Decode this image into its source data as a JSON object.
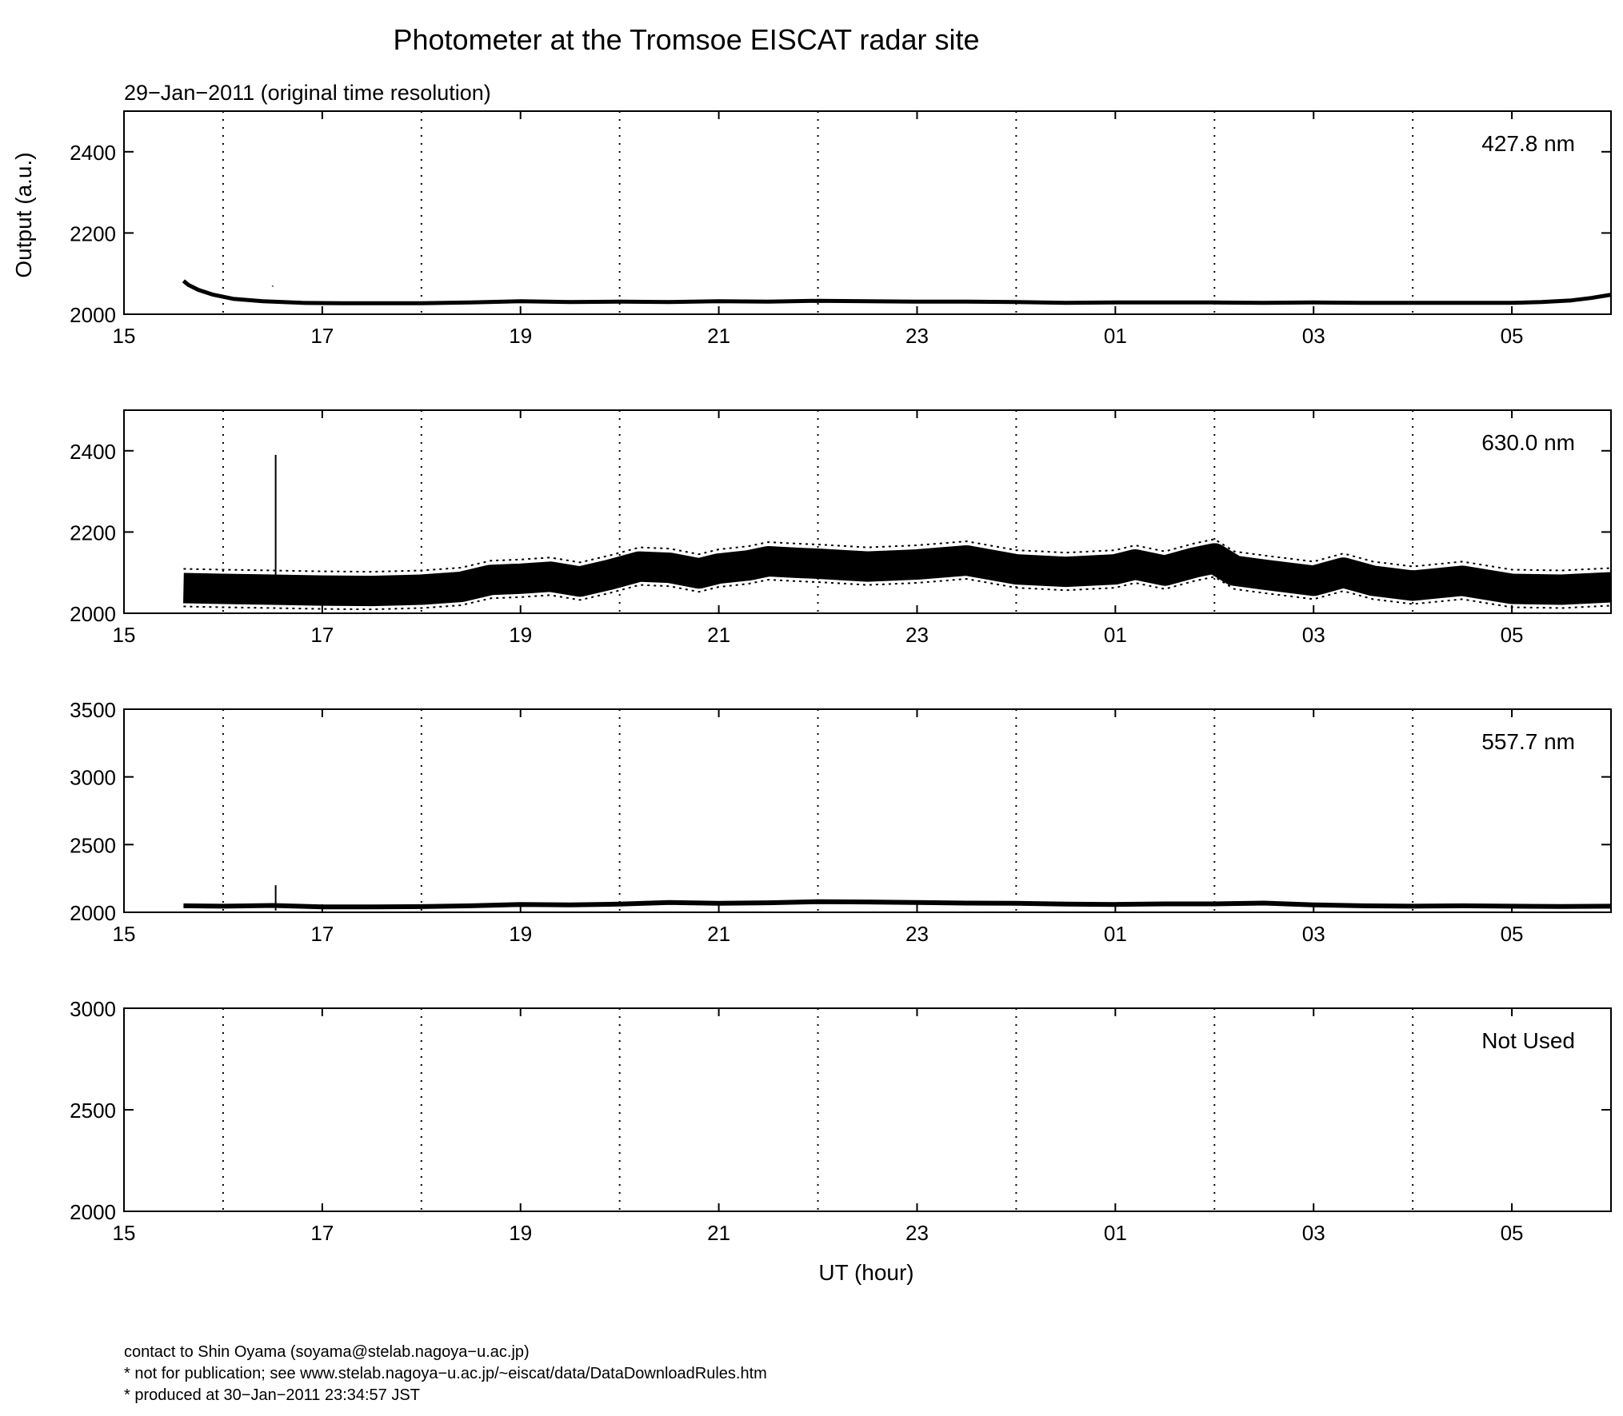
{
  "figure": {
    "title": "Photometer at the Tromsoe EISCAT radar site",
    "subtitle": "29−Jan−2011 (original time resolution)",
    "ylabel": "Output (a.u.)",
    "xlabel": "UT (hour)",
    "footer": [
      "contact to Shin Oyama (soyama@stelab.nagoya−u.ac.jp)",
      "* not for publication; see www.stelab.nagoya−u.ac.jp/~eiscat/data/DataDownloadRules.htm",
      "* produced at 30−Jan−2011 23:34:57 JST"
    ]
  },
  "chart_data": [
    {
      "type": "line",
      "label": "427.8 nm",
      "x_unit": "hours since 15 UT",
      "xlim": [
        0,
        15
      ],
      "x_ticks": [
        0,
        2,
        4,
        6,
        8,
        10,
        12,
        14
      ],
      "x_tick_labels": [
        "15",
        "17",
        "19",
        "21",
        "23",
        "01",
        "03",
        "05"
      ],
      "x_grid": [
        1,
        3,
        5,
        7,
        9,
        11,
        13
      ],
      "ylim": [
        2000,
        2500
      ],
      "y_ticks": [
        2000,
        2200,
        2400
      ],
      "grid": "vertical dotted",
      "band": 5,
      "spikes": [
        {
          "x": 1.5,
          "y": 2068
        }
      ],
      "series": [
        {
          "x": [
            0.6,
            0.65,
            0.75,
            0.9,
            1.1,
            1.4,
            1.8,
            2.2,
            2.6,
            3.0,
            3.5,
            4.0,
            4.5,
            5.0,
            5.5,
            6.0,
            6.5,
            7.0,
            7.5,
            8.0,
            8.5,
            9.0,
            9.5,
            10.0,
            10.5,
            11.0,
            11.5,
            12.0,
            12.5,
            13.0,
            13.5,
            14.0,
            14.3,
            14.6,
            14.8,
            15.0
          ],
          "y": [
            2082,
            2072,
            2060,
            2048,
            2038,
            2032,
            2028,
            2027,
            2027,
            2027,
            2029,
            2032,
            2030,
            2031,
            2030,
            2032,
            2031,
            2033,
            2032,
            2031,
            2031,
            2030,
            2028,
            2029,
            2029,
            2029,
            2028,
            2029,
            2028,
            2028,
            2028,
            2028,
            2030,
            2034,
            2040,
            2048
          ]
        }
      ]
    },
    {
      "type": "line",
      "label": "630.0 nm",
      "x_unit": "hours since 15 UT",
      "xlim": [
        0,
        15
      ],
      "x_ticks": [
        0,
        2,
        4,
        6,
        8,
        10,
        12,
        14
      ],
      "x_tick_labels": [
        "15",
        "17",
        "19",
        "21",
        "23",
        "01",
        "03",
        "05"
      ],
      "x_grid": [
        1,
        3,
        5,
        7,
        9,
        11,
        13
      ],
      "ylim": [
        2000,
        2500
      ],
      "y_ticks": [
        2000,
        2200,
        2400
      ],
      "grid": "vertical dotted",
      "band": 38,
      "spikes": [
        {
          "x": 1.53,
          "y": 2390
        }
      ],
      "series": [
        {
          "x": [
            0.6,
            1.0,
            1.5,
            2.0,
            2.5,
            3.0,
            3.4,
            3.7,
            4.0,
            4.3,
            4.6,
            4.9,
            5.2,
            5.5,
            5.8,
            6.0,
            6.3,
            6.5,
            6.8,
            7.0,
            7.5,
            8.0,
            8.5,
            9.0,
            9.5,
            10.0,
            10.2,
            10.5,
            10.8,
            11.0,
            11.2,
            11.5,
            12.0,
            12.3,
            12.6,
            13.0,
            13.5,
            14.0,
            14.5,
            15.0
          ],
          "y": [
            2062,
            2060,
            2058,
            2056,
            2055,
            2058,
            2065,
            2082,
            2085,
            2090,
            2078,
            2095,
            2115,
            2112,
            2098,
            2110,
            2118,
            2128,
            2124,
            2122,
            2115,
            2120,
            2130,
            2108,
            2102,
            2108,
            2120,
            2105,
            2125,
            2135,
            2105,
            2095,
            2080,
            2100,
            2080,
            2068,
            2080,
            2060,
            2058,
            2064
          ]
        }
      ]
    },
    {
      "type": "line",
      "label": "557.7 nm",
      "x_unit": "hours since 15 UT",
      "xlim": [
        0,
        15
      ],
      "x_ticks": [
        0,
        2,
        4,
        6,
        8,
        10,
        12,
        14
      ],
      "x_tick_labels": [
        "15",
        "17",
        "19",
        "21",
        "23",
        "01",
        "03",
        "05"
      ],
      "x_grid": [
        1,
        3,
        5,
        7,
        9,
        11,
        13
      ],
      "ylim": [
        2000,
        3500
      ],
      "y_ticks": [
        2000,
        2500,
        3000,
        3500
      ],
      "grid": "vertical dotted",
      "band": 6,
      "spikes": [
        {
          "x": 1.53,
          "y": 2200
        }
      ],
      "series": [
        {
          "x": [
            0.6,
            1.0,
            1.5,
            2.0,
            2.5,
            3.0,
            3.5,
            4.0,
            4.5,
            5.0,
            5.5,
            6.0,
            6.5,
            7.0,
            7.5,
            8.0,
            8.5,
            9.0,
            9.5,
            10.0,
            10.5,
            11.0,
            11.5,
            12.0,
            12.5,
            13.0,
            13.5,
            14.0,
            14.5,
            15.0
          ],
          "y": [
            2048,
            2045,
            2050,
            2040,
            2040,
            2042,
            2048,
            2058,
            2055,
            2060,
            2072,
            2066,
            2070,
            2078,
            2076,
            2072,
            2068,
            2066,
            2060,
            2058,
            2062,
            2062,
            2068,
            2055,
            2048,
            2045,
            2048,
            2045,
            2043,
            2045
          ]
        }
      ]
    },
    {
      "type": "line",
      "label": "Not Used",
      "x_unit": "hours since 15 UT",
      "xlim": [
        0,
        15
      ],
      "x_ticks": [
        0,
        2,
        4,
        6,
        8,
        10,
        12,
        14
      ],
      "x_tick_labels": [
        "15",
        "17",
        "19",
        "21",
        "23",
        "01",
        "03",
        "05"
      ],
      "x_grid": [
        1,
        3,
        5,
        7,
        9,
        11,
        13
      ],
      "ylim": [
        2000,
        3000
      ],
      "y_ticks": [
        2000,
        2500,
        3000
      ],
      "grid": "vertical dotted",
      "band": 0,
      "spikes": [],
      "series": []
    }
  ]
}
